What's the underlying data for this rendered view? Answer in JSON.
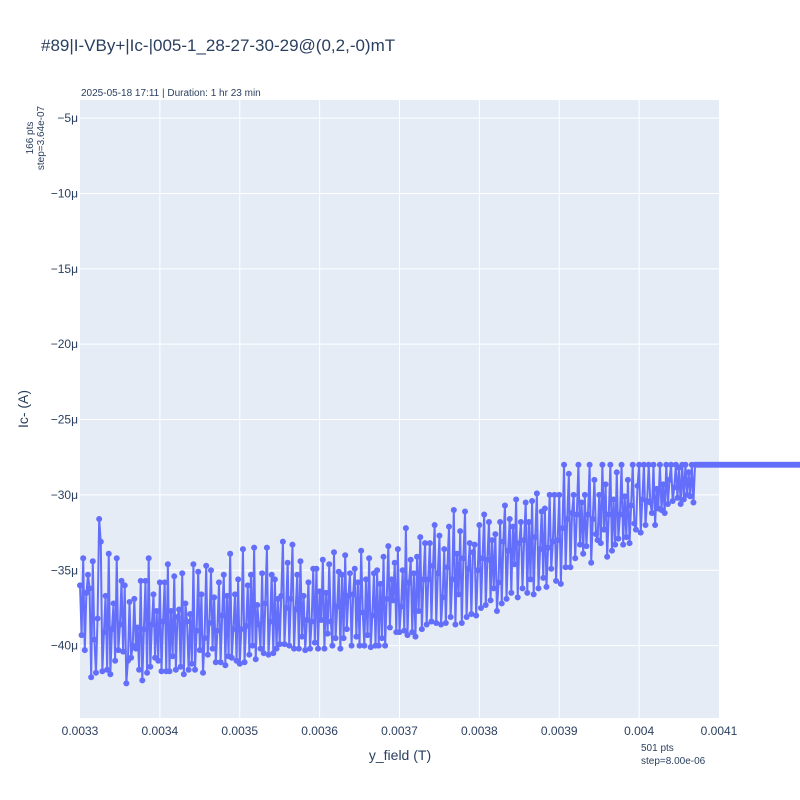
{
  "chart_data": {
    "type": "line",
    "title": "#89|I-VBy+|Ic-|005-1_28-27-30-29@(0,2,-0)mT",
    "subtitle": "2025-05-18 17:11 | Duration: 1 hr 23 min",
    "xlabel": "y_field (T)",
    "ylabel": "Ic- (A)",
    "x_annotation": [
      "501 pts",
      "step=8.00e-06"
    ],
    "y_annotation": [
      "166 pts",
      "step=3.64e-07"
    ],
    "xlim": [
      0.0033,
      0.0041
    ],
    "ylim": [
      -44.8,
      -3.8
    ],
    "y_unit_suffix": "μ",
    "x_ticks": [
      0.0033,
      0.0034,
      0.0035,
      0.0036,
      0.0037,
      0.0038,
      0.0039,
      0.004,
      0.0041
    ],
    "x_tick_labels": [
      "0.0033",
      "0.0034",
      "0.0035",
      "0.0036",
      "0.0037",
      "0.0038",
      "0.0039",
      "0.004",
      "0.0041"
    ],
    "y_ticks": [
      -5,
      -10,
      -15,
      -20,
      -25,
      -30,
      -35,
      -40
    ],
    "y_tick_labels": [
      "−5μ",
      "−10μ",
      "−15μ",
      "−20μ",
      "−25μ",
      "−30μ",
      "−35μ",
      "−40μ"
    ],
    "grid": true,
    "series": [
      {
        "color": "#636efa",
        "x_start": 0.0033,
        "x_step": 2e-06,
        "y": [
          -36.0,
          -39.3,
          -34.2,
          -40.3,
          -36.5,
          -35.3,
          -36.2,
          -42.1,
          -34.4,
          -39.6,
          -41.8,
          -38.2,
          -31.6,
          -33.1,
          -41.7,
          -39.1,
          -36.7,
          -41.6,
          -33.9,
          -41.9,
          -38.9,
          -37.2,
          -41.0,
          -34.2,
          -40.3,
          -38.6,
          -35.7,
          -40.4,
          -36.0,
          -42.5,
          -41.0,
          -37.1,
          -40.8,
          -40.0,
          -36.9,
          -40.2,
          -38.8,
          -41.6,
          -35.7,
          -42.3,
          -38.9,
          -35.7,
          -41.8,
          -34.2,
          -41.4,
          -38.6,
          -36.6,
          -40.8,
          -37.7,
          -41.0,
          -35.8,
          -41.7,
          -38.4,
          -35.8,
          -41.7,
          -34.6,
          -41.7,
          -37.7,
          -40.7,
          -35.4,
          -41.6,
          -38.1,
          -37.6,
          -41.4,
          -35.2,
          -41.9,
          -37.2,
          -38.4,
          -41.6,
          -37.9,
          -41.2,
          -34.6,
          -41.6,
          -39.0,
          -35.1,
          -40.3,
          -36.6,
          -41.8,
          -39.5,
          -34.7,
          -40.6,
          -38.5,
          -35.0,
          -40.2,
          -36.8,
          -41.1,
          -39.0,
          -35.8,
          -41.1,
          -38.0,
          -35.3,
          -41.3,
          -36.7,
          -40.7,
          -33.9,
          -40.8,
          -38.9,
          -36.6,
          -41.0,
          -35.6,
          -41.2,
          -38.9,
          -33.6,
          -41.1,
          -38.7,
          -36.0,
          -40.6,
          -35.3,
          -40.0,
          -33.5,
          -40.9,
          -37.3,
          -38.6,
          -40.2,
          -35.2,
          -40.5,
          -37.2,
          -33.5,
          -40.6,
          -38.4,
          -35.3,
          -40.5,
          -35.6,
          -40.2,
          -36.9,
          -39.9,
          -36.7,
          -33.1,
          -39.9,
          -37.5,
          -34.5,
          -40.0,
          -36.9,
          -33.3,
          -40.2,
          -37.6,
          -35.3,
          -40.2,
          -34.4,
          -39.4,
          -36.7,
          -40.3,
          -38.3,
          -35.8,
          -40.2,
          -38.4,
          -34.9,
          -39.8,
          -34.9,
          -40.2,
          -36.4,
          -38.3,
          -34.3,
          -40.2,
          -36.5,
          -39.2,
          -34.6,
          -38.4,
          -40.0,
          -33.8,
          -39.5,
          -37.4,
          -35.1,
          -40.2,
          -35.3,
          -39.5,
          -34.0,
          -38.9,
          -36.7,
          -35.2,
          -40.0,
          -36.6,
          -34.9,
          -39.4,
          -35.8,
          -40.0,
          -33.7,
          -37.8,
          -40.0,
          -35.6,
          -39.3,
          -34.2,
          -40.1,
          -38.0,
          -35.2,
          -40.0,
          -35.0,
          -40.0,
          -35.9,
          -39.5,
          -34.1,
          -40.0,
          -36.9,
          -33.4,
          -38.8,
          -35.6,
          -37.0,
          -34.5,
          -39.1,
          -33.6,
          -39.1,
          -37.4,
          -35.0,
          -39.0,
          -32.2,
          -39.3,
          -35.8,
          -34.3,
          -39.1,
          -35.2,
          -39.4,
          -34.1,
          -37.7,
          -32.8,
          -38.9,
          -35.6,
          -33.2,
          -38.6,
          -35.6,
          -33.2,
          -38.4,
          -34.7,
          -32.0,
          -38.5,
          -35.2,
          -32.7,
          -38.6,
          -36.8,
          -33.6,
          -38.5,
          -34.8,
          -32.1,
          -38.1,
          -35.6,
          -31.0,
          -38.6,
          -33.9,
          -36.6,
          -32.4,
          -38.5,
          -34.2,
          -31.1,
          -38.1,
          -34.9,
          -33.2,
          -37.9,
          -33.8,
          -33.3,
          -38.0,
          -35.0,
          -32.0,
          -37.5,
          -34.2,
          -31.3,
          -37.3,
          -34.3,
          -31.8,
          -37.0,
          -33.0,
          -36.2,
          -32.6,
          -37.7,
          -35.8,
          -31.8,
          -37.2,
          -33.1,
          -30.7,
          -36.9,
          -33.7,
          -31.6,
          -36.5,
          -32.1,
          -34.6,
          -30.3,
          -36.8,
          -33.2,
          -31.8,
          -36.2,
          -33.0,
          -30.5,
          -36.5,
          -31.8,
          -35.6,
          -30.4,
          -36.6,
          -32.8,
          -29.9,
          -36.2,
          -33.6,
          -31.1,
          -35.5,
          -30.9,
          -36.1,
          -33.5,
          -30.0,
          -34.9,
          -33.1,
          -30.0,
          -35.7,
          -33.0,
          -30.0,
          -35.9,
          -32.2,
          -28.0,
          -34.8,
          -31.6,
          -28.6,
          -34.8,
          -31.2,
          -30.0,
          -34.2,
          -31.3,
          -28.0,
          -33.3,
          -30.5,
          -33.9,
          -30.0,
          -33.4,
          -31.3,
          -28.0,
          -34.5,
          -31.6,
          -29.0,
          -32.6,
          -33.0,
          -30.0,
          -33.2,
          -28.0,
          -32.3,
          -29.3,
          -34.1,
          -31.3,
          -28.0,
          -33.7,
          -30.3,
          -33.3,
          -28.5,
          -32.9,
          -31.3,
          -28.0,
          -33.3,
          -30.1,
          -32.8,
          -29.0,
          -33.2,
          -30.7,
          -28.0,
          -31.9,
          -32.3,
          -29.4,
          -28.0,
          -32.5,
          -30.3,
          -28.0,
          -32.0,
          -30.4,
          -28.0,
          -30.5,
          -31.2,
          -28.0,
          -32.0,
          -29.6,
          -30.9,
          -28.0,
          -31.0,
          -29.3,
          -31.2,
          -28.0,
          -30.6,
          -29.0,
          -28.0,
          -30.4,
          -29.5,
          -28.0,
          -30.2,
          -28.2,
          -30.6,
          -28.0,
          -30.3,
          -28.0,
          -30.0,
          -28.5,
          -30.1,
          -28.0,
          -30.5,
          -28.0,
          -28.0,
          -28.0,
          -28.0,
          -28.0,
          -28.0,
          -28.0,
          -28.0,
          -28.0,
          -28.0,
          -28.0,
          -28.0,
          -28.0,
          -28.0,
          -28.0,
          -28.0,
          -28.0,
          -28.0,
          -28.0,
          -28.0,
          -28.0,
          -28.0,
          -28.0,
          -28.0,
          -28.0,
          -28.0,
          -28.0,
          -28.0,
          -28.0,
          -28.0,
          -28.0,
          -28.0,
          -28.0,
          -28.0,
          -28.0,
          -28.0,
          -28.0,
          -28.0,
          -28.0,
          -28.0,
          -28.0,
          -28.0,
          -28.0,
          -28.0,
          -28.0,
          -28.0,
          -28.0,
          -28.0,
          -28.0,
          -28.0,
          -28.0,
          -28.0,
          -28.0,
          -28.0,
          -28.0,
          -28.0,
          -28.0,
          -28.0,
          -28.0,
          -28.0,
          -28.0,
          -28.0,
          -28.0,
          -28.0,
          -28.0,
          -28.0,
          -28.0,
          -28.0,
          -28.0,
          -28.0,
          -28.0,
          -28.0,
          -28.0,
          -28.0,
          -28.0,
          -28.0,
          -28.0,
          -28.0,
          -28.0,
          -28.0,
          -28.0,
          -28.0,
          -28.0,
          -28.0,
          -28.0,
          -28.0,
          -28.0,
          -28.0,
          -28.0,
          -28.0,
          -28.0,
          -28.0,
          -28.0,
          -28.0,
          -28.0,
          -28.0,
          -28.0,
          -28.0,
          -28.0,
          -28.0,
          -28.0,
          -28.0,
          -28.0,
          -28.0,
          -28.0,
          -28.0,
          -28.0,
          -28.0,
          -28.0,
          -28.0,
          -28.0,
          -28.0,
          -28.0,
          -28.0,
          -28.0,
          -28.0,
          -28.0,
          -28.0,
          -28.0,
          -28.0,
          -28.0,
          -28.0,
          -28.0,
          -26.0,
          -26.0,
          -28.0,
          -26.0,
          -26.0,
          -28.0
        ]
      }
    ]
  }
}
